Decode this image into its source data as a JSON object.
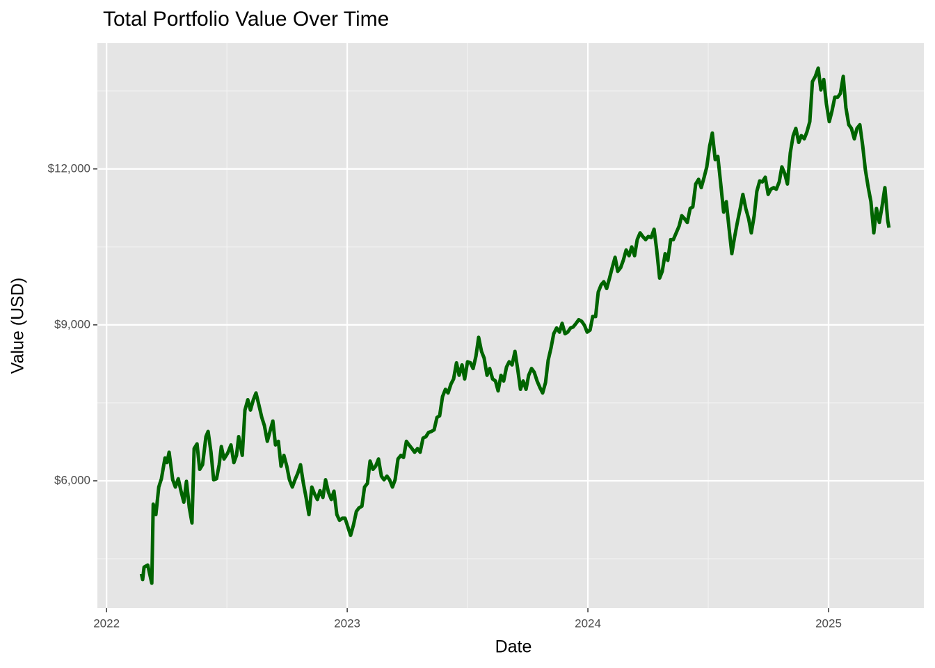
{
  "chart_data": {
    "type": "line",
    "title": "Total Portfolio Value Over Time",
    "x_label": "Date",
    "y_label": "Value (USD)",
    "color": "#006400",
    "grid": true,
    "xlim": [
      2021.962,
      2025.396
    ],
    "ylim": [
      3550,
      14420
    ],
    "xticks": [
      2022,
      2023,
      2024,
      2025
    ],
    "xminor": [
      2022.5,
      2023.5,
      2024.5
    ],
    "yticks": [
      {
        "value": 6000,
        "label": "$6,000"
      },
      {
        "value": 9000,
        "label": "$9,000"
      },
      {
        "value": 12000,
        "label": "$12,000"
      }
    ],
    "yminor": [
      4500,
      7500,
      10500,
      13500
    ],
    "x": [
      2022.145,
      2022.15,
      2022.156,
      2022.171,
      2022.188,
      2022.194,
      2022.205,
      2022.217,
      2022.228,
      2022.243,
      2022.251,
      2022.26,
      2022.275,
      2022.286,
      2022.298,
      2022.309,
      2022.321,
      2022.332,
      2022.344,
      2022.355,
      2022.364,
      2022.376,
      2022.387,
      2022.399,
      2022.413,
      2022.422,
      2022.434,
      2022.445,
      2022.457,
      2022.468,
      2022.477,
      2022.488,
      2022.503,
      2022.517,
      2022.529,
      2022.54,
      2022.549,
      2022.564,
      2022.575,
      2022.587,
      2022.598,
      2022.61,
      2022.621,
      2022.633,
      2022.645,
      2022.656,
      2022.668,
      2022.679,
      2022.691,
      2022.702,
      2022.714,
      2022.725,
      2022.737,
      2022.749,
      2022.76,
      2022.772,
      2022.783,
      2022.795,
      2022.806,
      2022.818,
      2022.829,
      2022.841,
      2022.853,
      2022.864,
      2022.876,
      2022.887,
      2022.899,
      2022.91,
      2022.922,
      2022.934,
      2022.945,
      2022.957,
      2022.968,
      2022.98,
      2022.991,
      2023.003,
      2023.014,
      2023.026,
      2023.038,
      2023.049,
      2023.061,
      2023.072,
      2023.084,
      2023.095,
      2023.107,
      2023.118,
      2023.13,
      2023.142,
      2023.153,
      2023.165,
      2023.176,
      2023.188,
      2023.199,
      2023.211,
      2023.223,
      2023.234,
      2023.246,
      2023.257,
      2023.269,
      2023.28,
      2023.292,
      2023.303,
      2023.315,
      2023.327,
      2023.338,
      2023.35,
      2023.361,
      2023.373,
      2023.384,
      2023.396,
      2023.408,
      2023.419,
      2023.431,
      2023.442,
      2023.454,
      2023.465,
      2023.477,
      2023.488,
      2023.5,
      2023.512,
      2023.523,
      2023.535,
      2023.546,
      2023.558,
      2023.569,
      2023.581,
      2023.592,
      2023.604,
      2023.616,
      2023.627,
      2023.639,
      2023.65,
      2023.662,
      2023.673,
      2023.685,
      2023.697,
      2023.708,
      2023.72,
      2023.731,
      2023.743,
      2023.754,
      2023.766,
      2023.777,
      2023.789,
      2023.801,
      2023.812,
      2023.824,
      2023.835,
      2023.847,
      2023.858,
      2023.87,
      2023.882,
      2023.893,
      2023.905,
      2023.916,
      2023.928,
      2023.939,
      2023.951,
      2023.962,
      2023.974,
      2023.986,
      2023.997,
      2024.009,
      2024.02,
      2024.032,
      2024.043,
      2024.055,
      2024.066,
      2024.078,
      2024.09,
      2024.101,
      2024.113,
      2024.124,
      2024.136,
      2024.147,
      2024.159,
      2024.171,
      2024.182,
      2024.194,
      2024.205,
      2024.217,
      2024.228,
      2024.24,
      2024.251,
      2024.263,
      2024.275,
      2024.286,
      2024.298,
      2024.309,
      2024.321,
      2024.332,
      2024.344,
      2024.355,
      2024.367,
      2024.379,
      2024.39,
      2024.402,
      2024.413,
      2024.425,
      2024.436,
      2024.448,
      2024.46,
      2024.471,
      2024.483,
      2024.494,
      2024.506,
      2024.517,
      2024.529,
      2024.54,
      2024.552,
      2024.564,
      2024.575,
      2024.587,
      2024.598,
      2024.61,
      2024.621,
      2024.633,
      2024.644,
      2024.656,
      2024.668,
      2024.679,
      2024.691,
      2024.702,
      2024.714,
      2024.725,
      2024.737,
      2024.749,
      2024.76,
      2024.772,
      2024.783,
      2024.795,
      2024.806,
      2024.818,
      2024.829,
      2024.841,
      2024.853,
      2024.864,
      2024.876,
      2024.887,
      2024.899,
      2024.91,
      2024.922,
      2024.933,
      2024.945,
      2024.957,
      2024.968,
      2024.98,
      2024.991,
      2025.003,
      2025.014,
      2025.026,
      2025.038,
      2025.049,
      2025.061,
      2025.072,
      2025.084,
      2025.095,
      2025.107,
      2025.118,
      2025.13,
      2025.142,
      2025.153,
      2025.165,
      2025.176,
      2025.188,
      2025.199,
      2025.211,
      2025.222,
      2025.234,
      2025.246,
      2025.251
    ],
    "values": [
      4210,
      4100,
      4340,
      4380,
      4030,
      5550,
      5350,
      5880,
      6040,
      6440,
      6350,
      6550,
      6020,
      5880,
      6040,
      5810,
      5590,
      5990,
      5480,
      5190,
      6620,
      6710,
      6220,
      6310,
      6850,
      6950,
      6550,
      6020,
      6040,
      6310,
      6660,
      6420,
      6530,
      6690,
      6350,
      6490,
      6850,
      6490,
      7360,
      7560,
      7360,
      7560,
      7690,
      7460,
      7220,
      7060,
      6760,
      6950,
      7150,
      6690,
      6760,
      6280,
      6490,
      6280,
      6020,
      5880,
      6020,
      6150,
      6310,
      5950,
      5680,
      5350,
      5880,
      5750,
      5640,
      5810,
      5680,
      6020,
      5780,
      5640,
      5800,
      5350,
      5240,
      5280,
      5280,
      5110,
      4950,
      5150,
      5410,
      5480,
      5510,
      5880,
      5950,
      6380,
      6220,
      6280,
      6420,
      6090,
      6020,
      6090,
      6020,
      5880,
      6020,
      6420,
      6490,
      6450,
      6760,
      6690,
      6620,
      6550,
      6620,
      6550,
      6820,
      6850,
      6930,
      6950,
      6980,
      7220,
      7250,
      7620,
      7760,
      7690,
      7860,
      7960,
      8270,
      8030,
      8230,
      7960,
      8290,
      8270,
      8160,
      8400,
      8760,
      8490,
      8360,
      8030,
      8160,
      7960,
      7920,
      7730,
      8030,
      7920,
      8190,
      8290,
      8230,
      8490,
      8160,
      7760,
      7920,
      7760,
      8030,
      8160,
      8090,
      7920,
      7790,
      7690,
      7890,
      8320,
      8560,
      8830,
      8940,
      8860,
      9030,
      8830,
      8860,
      8940,
      8960,
      9030,
      9100,
      9070,
      8990,
      8860,
      8900,
      9160,
      9160,
      9630,
      9770,
      9830,
      9700,
      9900,
      10100,
      10300,
      10030,
      10100,
      10240,
      10440,
      10330,
      10500,
      10330,
      10640,
      10770,
      10700,
      10640,
      10700,
      10680,
      10840,
      10440,
      9900,
      10030,
      10370,
      10240,
      10640,
      10640,
      10770,
      10900,
      11100,
      11040,
      10970,
      11240,
      11270,
      11710,
      11800,
      11640,
      11840,
      12040,
      12440,
      12690,
      12180,
      12240,
      11710,
      11170,
      11370,
      10840,
      10370,
      10700,
      10970,
      11240,
      11510,
      11240,
      11040,
      10770,
      11100,
      11570,
      11770,
      11750,
      11840,
      11510,
      11610,
      11640,
      11610,
      11750,
      12040,
      11910,
      11710,
      12310,
      12640,
      12780,
      12510,
      12640,
      12580,
      12710,
      12910,
      13680,
      13780,
      13940,
      13520,
      13720,
      13250,
      12910,
      13110,
      13380,
      13380,
      13450,
      13780,
      13180,
      12850,
      12780,
      12580,
      12780,
      12850,
      12440,
      11980,
      11640,
      11370,
      10770,
      11240,
      10970,
      11270,
      11640,
      11000,
      10870
    ]
  }
}
